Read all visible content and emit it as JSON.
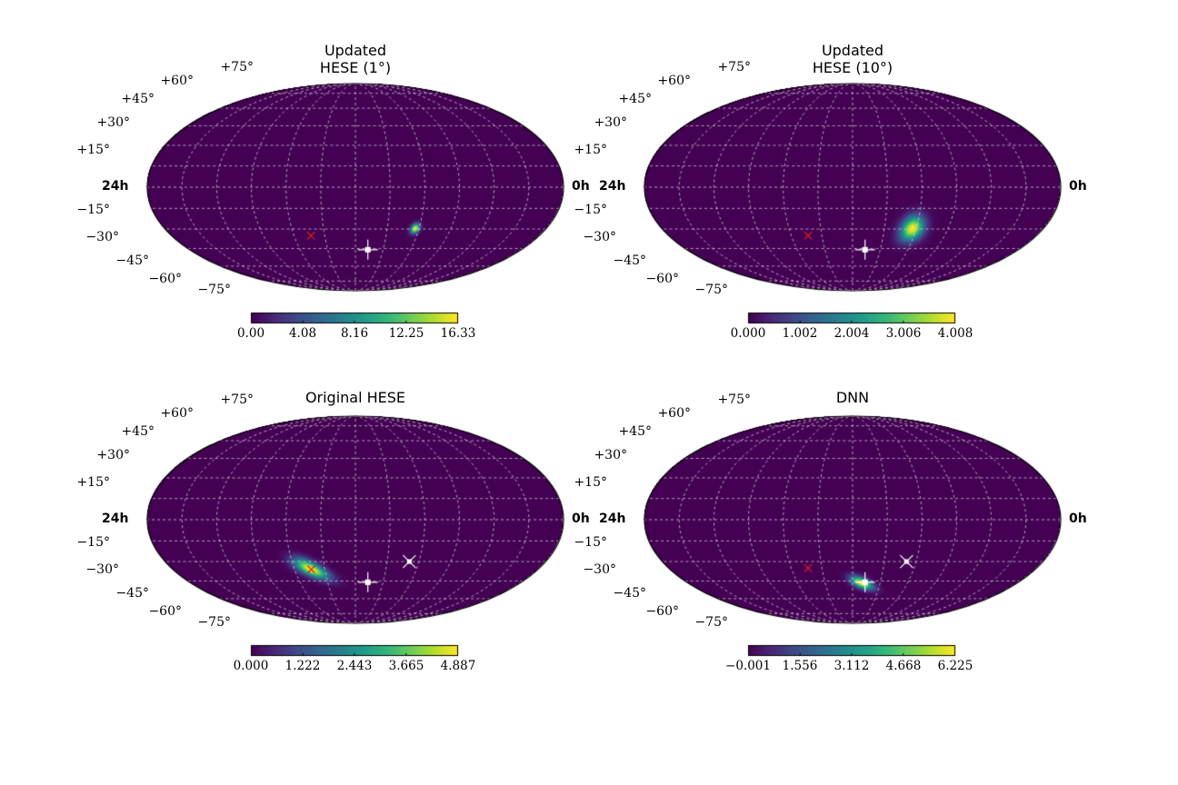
{
  "colors": {
    "background": "#ffffff",
    "map_fill": "#440154",
    "grid": "#d0d0d0",
    "marker_red": "#e0201c",
    "marker_white": "#ffffff",
    "colormap": "viridis"
  },
  "chart_data": [
    {
      "type": "heatmap",
      "projection": "mollweide",
      "title_lines": [
        "Updated",
        "HESE (1°)"
      ],
      "lat_labels": [
        "+75°",
        "+60°",
        "+45°",
        "+30°",
        "+15°",
        "−15°",
        "−30°",
        "−45°",
        "−60°",
        "−75°"
      ],
      "hour_labels": {
        "left": "24h",
        "right": "0h"
      },
      "grid": true,
      "colorbar": {
        "ticks": [
          "0.00",
          "4.08",
          "8.16",
          "12.25",
          "16.33"
        ],
        "min": 0.0,
        "max": 16.33
      },
      "hotspot": {
        "ra_h": 8.2,
        "dec": -30,
        "width_deg": 3.5,
        "peak": 16.33
      },
      "markers": [
        {
          "kind": "red-x",
          "ra_h": 14.9,
          "dec": -35
        },
        {
          "kind": "white-square-cross",
          "ra_h": 11.1,
          "dec": -46
        }
      ]
    },
    {
      "type": "heatmap",
      "projection": "mollweide",
      "title_lines": [
        "Updated",
        "HESE (10°)"
      ],
      "lat_labels": [
        "+75°",
        "+60°",
        "+45°",
        "+30°",
        "+15°",
        "−15°",
        "−30°",
        "−45°",
        "−60°",
        "−75°"
      ],
      "hour_labels": {
        "left": "24h",
        "right": "0h"
      },
      "grid": true,
      "colorbar": {
        "ticks": [
          "0.000",
          "1.002",
          "2.004",
          "3.006",
          "4.008"
        ],
        "min": 0.0,
        "max": 4.008
      },
      "hotspot": {
        "ra_h": 8.2,
        "dec": -30,
        "width_deg": 9,
        "peak": 4.008
      },
      "markers": [
        {
          "kind": "red-x",
          "ra_h": 14.9,
          "dec": -35
        },
        {
          "kind": "white-square-cross",
          "ra_h": 11.1,
          "dec": -46
        }
      ]
    },
    {
      "type": "heatmap",
      "projection": "mollweide",
      "title_lines": [
        "Original HESE"
      ],
      "lat_labels": [
        "+75°",
        "+60°",
        "+45°",
        "+30°",
        "+15°",
        "−15°",
        "−30°",
        "−45°",
        "−60°",
        "−75°"
      ],
      "hour_labels": {
        "left": "24h",
        "right": "0h"
      },
      "grid": true,
      "colorbar": {
        "ticks": [
          "0.000",
          "1.222",
          "2.443",
          "3.665",
          "4.887"
        ],
        "min": 0.0,
        "max": 4.887
      },
      "hotspot": {
        "ra_h": 14.9,
        "dec": -36,
        "width_deg": 13,
        "peak": 4.887,
        "elongated": true
      },
      "markers": [
        {
          "kind": "red-x",
          "ra_h": 14.9,
          "dec": -36
        },
        {
          "kind": "white-square-cross",
          "ra_h": 11.1,
          "dec": -46
        },
        {
          "kind": "white-x-star",
          "ra_h": 8.6,
          "dec": -30
        }
      ]
    },
    {
      "type": "heatmap",
      "projection": "mollweide",
      "title_lines": [
        "DNN"
      ],
      "lat_labels": [
        "+75°",
        "+60°",
        "+45°",
        "+30°",
        "+15°",
        "−15°",
        "−30°",
        "−45°",
        "−60°",
        "−75°"
      ],
      "hour_labels": {
        "left": "24h",
        "right": "0h"
      },
      "grid": true,
      "colorbar": {
        "ticks": [
          "−0.001",
          "1.556",
          "3.112",
          "4.668",
          "6.225"
        ],
        "min": -0.001,
        "max": 6.225
      },
      "hotspot": {
        "ra_h": 11.3,
        "dec": -47,
        "width_deg": 9,
        "peak": 6.225,
        "elongated": true
      },
      "markers": [
        {
          "kind": "red-x",
          "ra_h": 14.9,
          "dec": -35
        },
        {
          "kind": "white-square-cross",
          "ra_h": 11.1,
          "dec": -46
        },
        {
          "kind": "white-x-star",
          "ra_h": 8.6,
          "dec": -30
        }
      ]
    }
  ]
}
